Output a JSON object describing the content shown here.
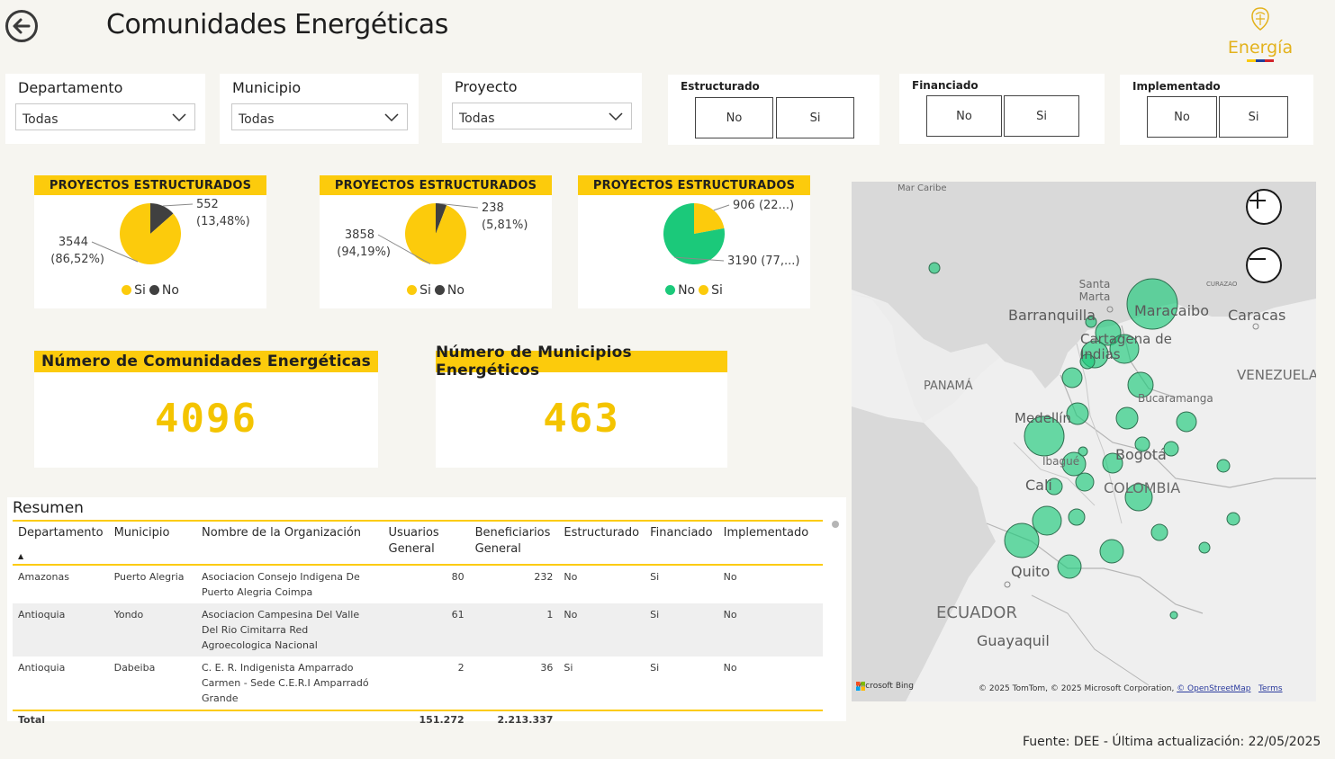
{
  "header": {
    "title": "Comunidades Energéticas",
    "logo_text": "Energía",
    "icons": {
      "back": "back-arrow-icon",
      "logo": "coat-of-arms-icon"
    }
  },
  "slicers": {
    "departamento": {
      "label": "Departamento",
      "value": "Todas"
    },
    "municipio": {
      "label": "Municipio",
      "value": "Todas"
    },
    "proyecto": {
      "label": "Proyecto",
      "value": "Todas"
    },
    "estructurado": {
      "label": "Estructurado",
      "no": "No",
      "si": "Si"
    },
    "financiado": {
      "label": "Financiado",
      "no": "No",
      "si": "Si"
    },
    "implementado": {
      "label": "Implementado",
      "no": "No",
      "si": "Si"
    }
  },
  "colors": {
    "accent": "#fccb0c",
    "si": "#fccb0c",
    "no": "#404040",
    "green": "#1bc97a",
    "kpi": "#f4c400"
  },
  "chart_data": [
    {
      "type": "pie",
      "title": "PROYECTOS ESTRUCTURADOS",
      "slices": [
        {
          "name": "Si",
          "value": 3544,
          "label": "3544",
          "pct": "(86,52%)",
          "color": "#fccb0c"
        },
        {
          "name": "No",
          "value": 552,
          "label": "552",
          "pct": "(13,48%)",
          "color": "#404040"
        }
      ],
      "legend": [
        "Si",
        "No"
      ]
    },
    {
      "type": "pie",
      "title": "PROYECTOS ESTRUCTURADOS",
      "slices": [
        {
          "name": "Si",
          "value": 3858,
          "label": "3858",
          "pct": "(94,19%)",
          "color": "#fccb0c"
        },
        {
          "name": "No",
          "value": 238,
          "label": "238",
          "pct": "(5,81%)",
          "color": "#404040"
        }
      ],
      "legend": [
        "Si",
        "No"
      ]
    },
    {
      "type": "pie",
      "title": "PROYECTOS ESTRUCTURADOS",
      "slices": [
        {
          "name": "Si",
          "value": 906,
          "label": "906 (22...)",
          "color": "#fccb0c"
        },
        {
          "name": "No",
          "value": 3190,
          "label": "3190 (77,...)",
          "color": "#1bc97a"
        }
      ],
      "legend": [
        "No",
        "Si"
      ]
    }
  ],
  "kpis": {
    "comunidades": {
      "label": "Número de Comunidades Energéticas",
      "value": "4096"
    },
    "municipios": {
      "label": "Número de Municipios Energéticos",
      "value": "463"
    }
  },
  "table": {
    "title": "Resumen",
    "columns": [
      "Departamento",
      "Municipio",
      "Nombre de la Organización",
      "Usuarios General",
      "Beneficiarios General",
      "Estructurado",
      "Financiado",
      "Implementado"
    ],
    "rows": [
      [
        "Amazonas",
        "Puerto Alegria",
        "Asociacion Consejo Indigena De Puerto Alegria Coimpa",
        "80",
        "232",
        "No",
        "Si",
        "No"
      ],
      [
        "Antioquia",
        "Yondo",
        "Asociacion Campesina Del Valle Del Rio Cimitarra Red Agroecologica Nacional",
        "61",
        "1",
        "No",
        "Si",
        "No"
      ],
      [
        "Antioquia",
        "Dabeiba",
        "C. E. R. Indigenista Amparrado Carmen - Sede C.E.R.I Amparradó Grande",
        "2",
        "36",
        "Si",
        "Si",
        "No"
      ]
    ],
    "total_label": "Total",
    "total_usuarios": "151.272",
    "total_beneficiarios": "2.213.337"
  },
  "map": {
    "labels": {
      "mar_caribe": "Mar Caribe",
      "santa_marta": "Santa Marta",
      "barranquilla": "Barranquilla",
      "maracaibo": "Maracaibo",
      "caracas": "Caracas",
      "curazao": "CURAZAO",
      "cartagena": "Cartagena de Indias",
      "panama": "PANAMÁ",
      "venezuela": "VENEZUELA",
      "bucaramanga": "Bucaramanga",
      "medellin": "Medellín",
      "ibague": "Ibagué",
      "bogota": "Bogotá",
      "cali": "Cali",
      "colombia": "COLOMBIA",
      "quito": "Quito",
      "ecuador": "ECUADOR",
      "guayaquil": "Guayaquil"
    },
    "attribution": "Microsoft Bing",
    "copyright": "© 2025 TomTom, © 2025 Microsoft Corporation,",
    "osm_link": "© OpenStreetMap",
    "terms_link": "Terms",
    "icons": {
      "zoom_in": "zoom-in-icon",
      "zoom_out": "zoom-out-icon"
    }
  },
  "footer": {
    "text": "Fuente: DEE - Última actualización: 22/05/2025"
  }
}
